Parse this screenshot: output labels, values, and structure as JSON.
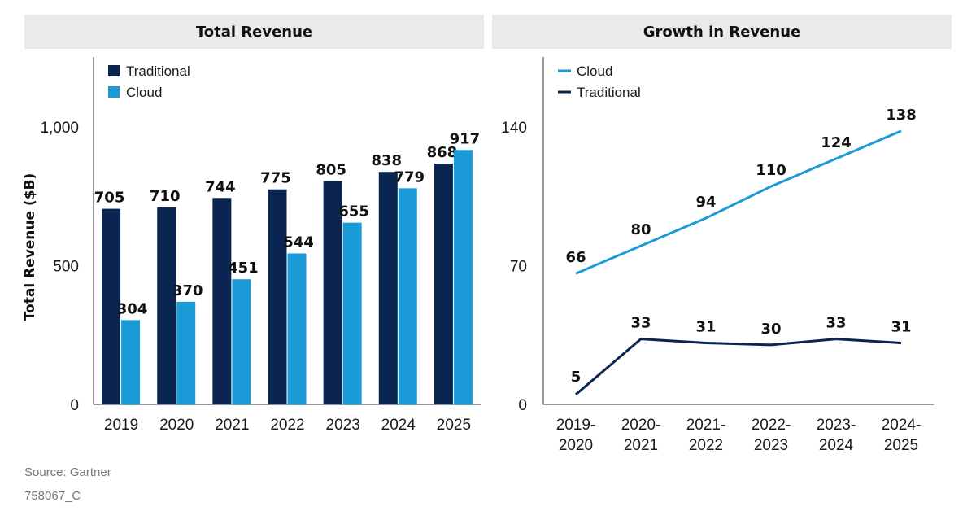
{
  "colors": {
    "traditional": "#0b2552",
    "cloud": "#1a9bd7",
    "axis": "#555555"
  },
  "footer": {
    "source": "Source: Gartner",
    "code": "758067_C"
  },
  "chart_data": [
    {
      "type": "bar",
      "title": "Total Revenue",
      "ylabel": "Total Revenue ($B)",
      "xlabel": "",
      "categories": [
        "2019",
        "2020",
        "2021",
        "2022",
        "2023",
        "2024",
        "2025"
      ],
      "ylim": [
        0,
        1000
      ],
      "yticks": [
        "0",
        "500",
        "1,000"
      ],
      "legend": "top-left",
      "series": [
        {
          "name": "Traditional",
          "values": [
            705,
            710,
            744,
            775,
            805,
            838,
            868
          ]
        },
        {
          "name": "Cloud",
          "values": [
            304,
            370,
            451,
            544,
            655,
            779,
            917
          ]
        }
      ]
    },
    {
      "type": "line",
      "title": "Growth in Revenue",
      "ylabel": "",
      "xlabel": "",
      "categories": [
        "2019-\n2020",
        "2020-\n2021",
        "2021-\n2022",
        "2022-\n2023",
        "2023-\n2024",
        "2024-\n2025"
      ],
      "ylim": [
        0,
        140
      ],
      "yticks": [
        "0",
        "70",
        "140"
      ],
      "legend": "top-left",
      "series": [
        {
          "name": "Cloud",
          "values": [
            66,
            80,
            94,
            110,
            124,
            138
          ]
        },
        {
          "name": "Traditional",
          "values": [
            5,
            33,
            31,
            30,
            33,
            31
          ]
        }
      ]
    }
  ]
}
